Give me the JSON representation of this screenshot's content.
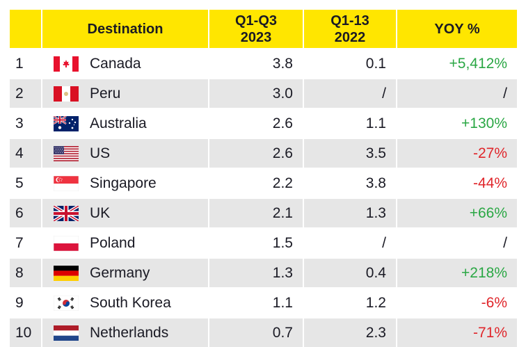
{
  "table": {
    "headers": {
      "rank": "",
      "destination": "Destination",
      "col_2023": "Q1-Q3\n2023",
      "col_2022": "Q1-13\n2022",
      "yoy": "YOY %"
    },
    "colors": {
      "header_bg": "#ffe600",
      "row_alt_bg": "#e6e6e6",
      "positive": "#2aa744",
      "negative": "#e0262b"
    },
    "rows": [
      {
        "rank": "1",
        "flag": "canada-flag-icon",
        "destination": "Canada",
        "v2023": "3.8",
        "v2022": "0.1",
        "yoy": "+5,412%",
        "trend": "pos"
      },
      {
        "rank": "2",
        "flag": "peru-flag-icon",
        "destination": "Peru",
        "v2023": "3.0",
        "v2022": "/",
        "yoy": "/",
        "trend": "na"
      },
      {
        "rank": "3",
        "flag": "australia-flag-icon",
        "destination": "Australia",
        "v2023": "2.6",
        "v2022": "1.1",
        "yoy": "+130%",
        "trend": "pos"
      },
      {
        "rank": "4",
        "flag": "us-flag-icon",
        "destination": "US",
        "v2023": "2.6",
        "v2022": "3.5",
        "yoy": "-27%",
        "trend": "neg"
      },
      {
        "rank": "5",
        "flag": "singapore-flag-icon",
        "destination": "Singapore",
        "v2023": "2.2",
        "v2022": "3.8",
        "yoy": "-44%",
        "trend": "neg"
      },
      {
        "rank": "6",
        "flag": "uk-flag-icon",
        "destination": "UK",
        "v2023": "2.1",
        "v2022": "1.3",
        "yoy": "+66%",
        "trend": "pos"
      },
      {
        "rank": "7",
        "flag": "poland-flag-icon",
        "destination": "Poland",
        "v2023": "1.5",
        "v2022": "/",
        "yoy": "/",
        "trend": "na"
      },
      {
        "rank": "8",
        "flag": "germany-flag-icon",
        "destination": "Germany",
        "v2023": "1.3",
        "v2022": "0.4",
        "yoy": "+218%",
        "trend": "pos"
      },
      {
        "rank": "9",
        "flag": "south-korea-flag-icon",
        "destination": "South Korea",
        "v2023": "1.1",
        "v2022": "1.2",
        "yoy": "-6%",
        "trend": "neg"
      },
      {
        "rank": "10",
        "flag": "netherlands-flag-icon",
        "destination": "Netherlands",
        "v2023": "0.7",
        "v2022": "2.3",
        "yoy": "-71%",
        "trend": "neg"
      }
    ]
  }
}
